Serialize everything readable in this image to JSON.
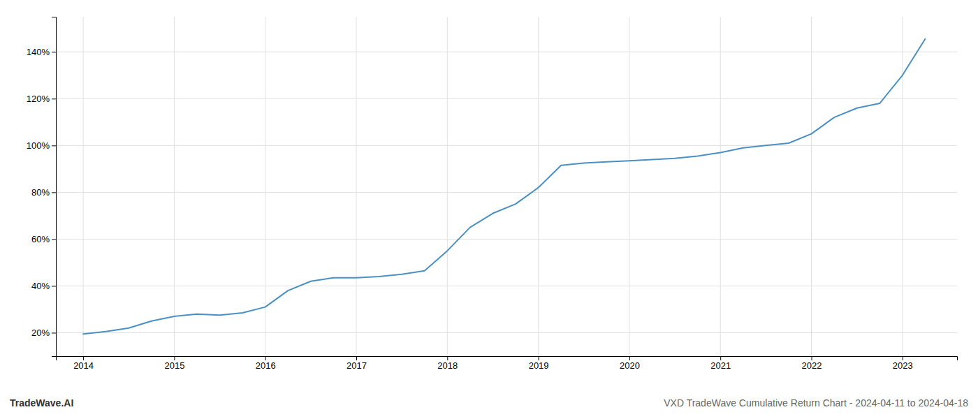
{
  "chart_data": {
    "type": "line",
    "x": [
      2014.0,
      2014.25,
      2014.5,
      2014.75,
      2015.0,
      2015.25,
      2015.5,
      2015.75,
      2016.0,
      2016.25,
      2016.5,
      2016.75,
      2017.0,
      2017.25,
      2017.5,
      2017.75,
      2018.0,
      2018.25,
      2018.5,
      2018.75,
      2019.0,
      2019.25,
      2019.5,
      2019.75,
      2020.0,
      2020.25,
      2020.5,
      2020.75,
      2021.0,
      2021.25,
      2021.5,
      2021.75,
      2022.0,
      2022.25,
      2022.5,
      2022.75,
      2023.0,
      2023.25
    ],
    "values": [
      19.5,
      20.5,
      22.0,
      25.0,
      27.0,
      28.0,
      27.5,
      28.5,
      31.0,
      38.0,
      42.0,
      43.5,
      43.5,
      44.0,
      45.0,
      46.5,
      55.0,
      65.0,
      71.0,
      75.0,
      82.0,
      91.5,
      92.5,
      93.0,
      93.5,
      94.0,
      94.5,
      95.5,
      97.0,
      99.0,
      100.0,
      101.0,
      105.0,
      112.0,
      116.0,
      118.0,
      130.0,
      145.5
    ],
    "color": "#4a90c4",
    "xlim": [
      2013.7,
      2023.6
    ],
    "ylim": [
      10,
      155
    ],
    "xticks": [
      2014,
      2015,
      2016,
      2017,
      2018,
      2019,
      2020,
      2021,
      2022,
      2023
    ],
    "yticks": [
      {
        "value": 20,
        "label": "20%"
      },
      {
        "value": 40,
        "label": "40%"
      },
      {
        "value": 60,
        "label": "60%"
      },
      {
        "value": 80,
        "label": "80%"
      },
      {
        "value": 100,
        "label": "100%"
      },
      {
        "value": 120,
        "label": "120%"
      },
      {
        "value": 140,
        "label": "140%"
      }
    ],
    "grid": true,
    "annotations": [
      "TradeWave.AI",
      "VXD TradeWave Cumulative Return Chart - 2024-04-11 to 2024-04-18"
    ]
  }
}
